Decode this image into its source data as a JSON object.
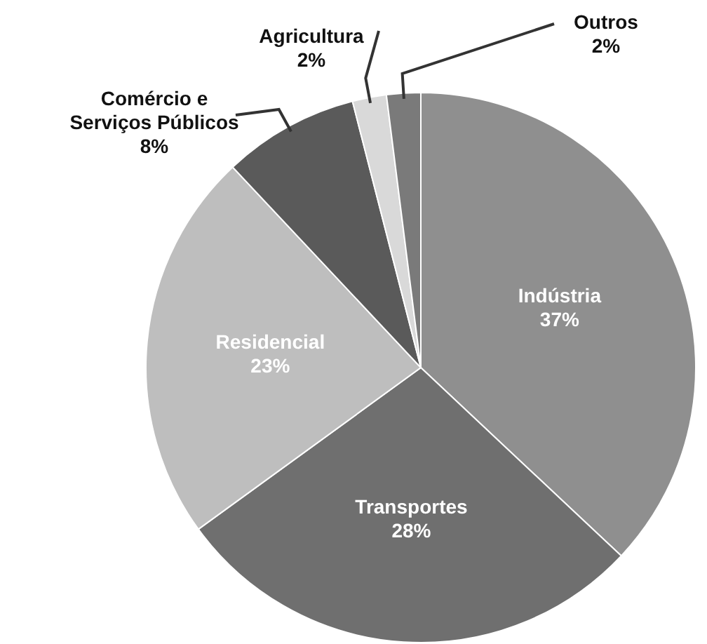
{
  "chart_data": {
    "type": "pie",
    "categories": [
      "Indústria",
      "Transportes",
      "Residencial",
      "Comércio e Serviços Públicos",
      "Agricultura",
      "Outros"
    ],
    "values": [
      37,
      28,
      23,
      8,
      2,
      2
    ],
    "colors": [
      "#8f8f8f",
      "#6f6f6f",
      "#bebebe",
      "#5a5a5a",
      "#d9d9d9",
      "#7a7a7a"
    ],
    "value_labels": [
      "37%",
      "28%",
      "23%",
      "8%",
      "2%",
      "2%"
    ]
  }
}
